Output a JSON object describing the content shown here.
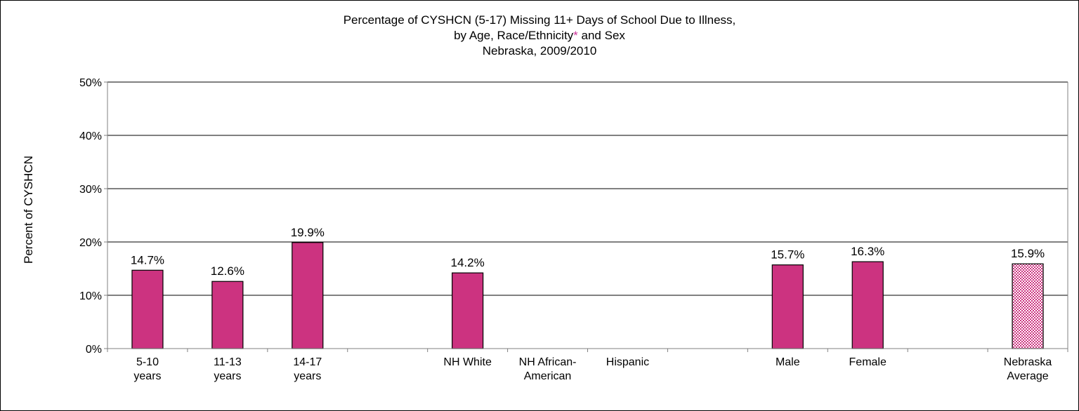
{
  "chart_data": {
    "type": "bar",
    "title": {
      "line1": "Percentage of CYSHCN (5-17) Missing 11+ Days of School Due to Illness,",
      "line2_before": "by Age, Race/Ethnicity",
      "line2_asterisk": "*",
      "line2_after": " and Sex",
      "line3": "Nebraska, 2009/2010"
    },
    "ylabel": "Percent of CYSHCN",
    "xlabel": "",
    "ylim": [
      0,
      50
    ],
    "yticks": [
      0,
      10,
      20,
      30,
      40,
      50
    ],
    "ytick_labels": [
      "0%",
      "10%",
      "20%",
      "30%",
      "40%",
      "50%"
    ],
    "grid": true,
    "categories": [
      {
        "label": [
          "5-10",
          "years"
        ],
        "value": 14.7,
        "value_label": "14.7%",
        "style": "solid"
      },
      {
        "label": [
          "11-13",
          "years"
        ],
        "value": 12.6,
        "value_label": "12.6%",
        "style": "solid"
      },
      {
        "label": [
          "14-17",
          "years"
        ],
        "value": 19.9,
        "value_label": "19.9%",
        "style": "solid"
      },
      {
        "label": [],
        "value": null,
        "value_label": "",
        "style": "solid"
      },
      {
        "label": [
          "NH White"
        ],
        "value": 14.2,
        "value_label": "14.2%",
        "style": "solid"
      },
      {
        "label": [
          "NH African-",
          "American"
        ],
        "value": null,
        "value_label": "",
        "style": "solid"
      },
      {
        "label": [
          "Hispanic"
        ],
        "value": null,
        "value_label": "",
        "style": "solid"
      },
      {
        "label": [],
        "value": null,
        "value_label": "",
        "style": "solid"
      },
      {
        "label": [
          "Male"
        ],
        "value": 15.7,
        "value_label": "15.7%",
        "style": "solid"
      },
      {
        "label": [
          "Female"
        ],
        "value": 16.3,
        "value_label": "16.3%",
        "style": "solid"
      },
      {
        "label": [],
        "value": null,
        "value_label": "",
        "style": "solid"
      },
      {
        "label": [
          "Nebraska",
          "Average"
        ],
        "value": 15.9,
        "value_label": "15.9%",
        "style": "pattern"
      }
    ],
    "colors": {
      "bar_fill": "#cc3380",
      "pattern_fill": "#cc3380",
      "pattern_bg": "#ffffff",
      "asterisk": "#cc3399",
      "grid": "#000000",
      "axis": "#808080"
    }
  }
}
